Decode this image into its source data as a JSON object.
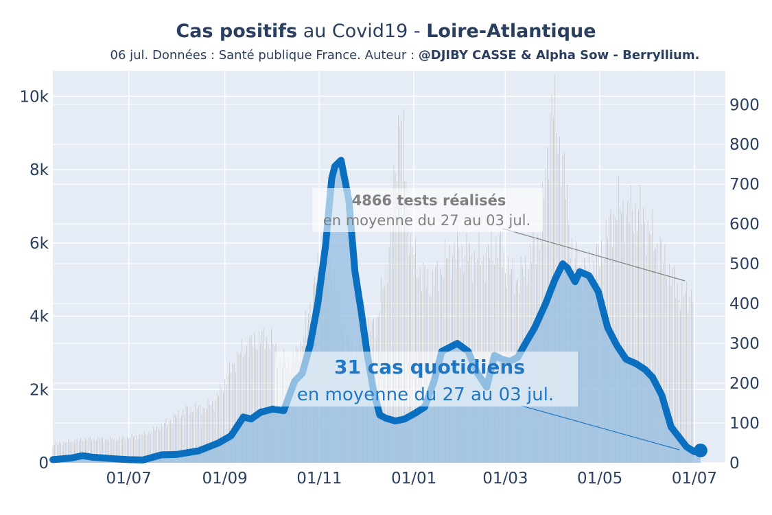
{
  "header": {
    "title_bold1": "Cas positifs",
    "title_mid": " au Covid19 - ",
    "title_bold2": "Loire-Atlantique",
    "subtitle_plain": "06 jul. Données : Santé publique France. Auteur : ",
    "subtitle_bold": "@DJIBY CASSE & Alpha Sow - Berryllium."
  },
  "colors": {
    "plot_bg": "#e5ecf6",
    "cases_line": "#0b6fbf",
    "cases_fill": "#96bde0",
    "tests_bars": "#c8c8c8",
    "grid": "#ffffff",
    "text": "#2a3f5f",
    "annotation_grey": "#808080",
    "annotation_blue": "#1f77c4"
  },
  "annotations": {
    "tests_bold": "4866 tests réalisés",
    "tests_sub": "en moyenne du 27 au 03 jul.",
    "cases_bold": "31 cas quotidiens",
    "cases_sub": "en moyenne du 27 au 03 jul."
  },
  "chart_data": {
    "type": "line",
    "x_tick_labels": [
      "01/07",
      "01/09",
      "01/11",
      "01/01",
      "01/03",
      "01/05",
      "01/07"
    ],
    "x_tick_dates": [
      "2020-07-01",
      "2020-09-01",
      "2020-11-01",
      "2021-01-01",
      "2021-03-01",
      "2021-05-01",
      "2021-07-01"
    ],
    "x_range": [
      "2020-05-13",
      "2021-07-21"
    ],
    "y_left_ticks": [
      "0",
      "2k",
      "4k",
      "6k",
      "8k",
      "10k"
    ],
    "y_left_range": [
      0,
      10700
    ],
    "y_right_ticks": [
      "0",
      "100",
      "200",
      "300",
      "400",
      "500",
      "600",
      "700",
      "800",
      "900"
    ],
    "y_right_range": [
      0,
      985
    ],
    "grid": true,
    "series": [
      {
        "axis": "left",
        "style": "bars",
        "points": [
          [
            "2020-05-13",
            500
          ],
          [
            "2020-05-20",
            550
          ],
          [
            "2020-05-27",
            600
          ],
          [
            "2020-06-03",
            650
          ],
          [
            "2020-06-10",
            650
          ],
          [
            "2020-06-17",
            650
          ],
          [
            "2020-06-24",
            650
          ],
          [
            "2020-07-01",
            700
          ],
          [
            "2020-07-08",
            750
          ],
          [
            "2020-07-15",
            850
          ],
          [
            "2020-07-22",
            1000
          ],
          [
            "2020-07-29",
            1200
          ],
          [
            "2020-08-05",
            1400
          ],
          [
            "2020-08-12",
            1500
          ],
          [
            "2020-08-19",
            1500
          ],
          [
            "2020-08-26",
            1700
          ],
          [
            "2020-09-02",
            2300
          ],
          [
            "2020-09-09",
            2900
          ],
          [
            "2020-09-16",
            3200
          ],
          [
            "2020-09-23",
            3400
          ],
          [
            "2020-09-30",
            3400
          ],
          [
            "2020-10-07",
            2800
          ],
          [
            "2020-10-14",
            2700
          ],
          [
            "2020-10-21",
            3300
          ],
          [
            "2020-10-28",
            4700
          ],
          [
            "2020-11-04",
            5800
          ],
          [
            "2020-11-11",
            5000
          ],
          [
            "2020-11-18",
            3300
          ],
          [
            "2020-11-25",
            3000
          ],
          [
            "2020-12-02",
            3500
          ],
          [
            "2020-12-09",
            4000
          ],
          [
            "2020-12-16",
            5800
          ],
          [
            "2020-12-23",
            9700
          ],
          [
            "2020-12-30",
            5900
          ],
          [
            "2021-01-06",
            5100
          ],
          [
            "2021-01-13",
            4900
          ],
          [
            "2021-01-20",
            5400
          ],
          [
            "2021-01-27",
            5800
          ],
          [
            "2021-02-03",
            5700
          ],
          [
            "2021-02-10",
            5600
          ],
          [
            "2021-02-17",
            5600
          ],
          [
            "2021-02-24",
            6000
          ],
          [
            "2021-03-03",
            5200
          ],
          [
            "2021-03-10",
            5000
          ],
          [
            "2021-03-17",
            5600
          ],
          [
            "2021-03-24",
            6300
          ],
          [
            "2021-03-31",
            9900
          ],
          [
            "2021-04-07",
            8200
          ],
          [
            "2021-04-14",
            5500
          ],
          [
            "2021-04-21",
            5200
          ],
          [
            "2021-04-28",
            5400
          ],
          [
            "2021-05-05",
            6100
          ],
          [
            "2021-05-12",
            7000
          ],
          [
            "2021-05-19",
            6800
          ],
          [
            "2021-05-26",
            6900
          ],
          [
            "2021-06-02",
            6300
          ],
          [
            "2021-06-09",
            5800
          ],
          [
            "2021-06-16",
            5100
          ],
          [
            "2021-06-23",
            4500
          ],
          [
            "2021-06-30",
            4700
          ]
        ]
      },
      {
        "axis": "right",
        "style": "line",
        "points": [
          [
            "2020-05-13",
            8
          ],
          [
            "2020-05-25",
            12
          ],
          [
            "2020-06-01",
            18
          ],
          [
            "2020-06-08",
            14
          ],
          [
            "2020-06-22",
            10
          ],
          [
            "2020-07-01",
            8
          ],
          [
            "2020-07-10",
            7
          ],
          [
            "2020-07-22",
            20
          ],
          [
            "2020-08-01",
            21
          ],
          [
            "2020-08-15",
            30
          ],
          [
            "2020-08-28",
            50
          ],
          [
            "2020-09-05",
            68
          ],
          [
            "2020-09-13",
            115
          ],
          [
            "2020-09-18",
            110
          ],
          [
            "2020-09-24",
            127
          ],
          [
            "2020-10-02",
            135
          ],
          [
            "2020-10-09",
            131
          ],
          [
            "2020-10-16",
            205
          ],
          [
            "2020-10-21",
            225
          ],
          [
            "2020-10-26",
            295
          ],
          [
            "2020-10-31",
            400
          ],
          [
            "2020-11-05",
            545
          ],
          [
            "2020-11-09",
            715
          ],
          [
            "2020-11-11",
            745
          ],
          [
            "2020-11-15",
            760
          ],
          [
            "2020-11-20",
            660
          ],
          [
            "2020-11-24",
            480
          ],
          [
            "2020-11-28",
            380
          ],
          [
            "2020-12-02",
            270
          ],
          [
            "2020-12-06",
            180
          ],
          [
            "2020-12-10",
            120
          ],
          [
            "2020-12-14",
            112
          ],
          [
            "2020-12-20",
            105
          ],
          [
            "2020-12-26",
            110
          ],
          [
            "2021-01-02",
            125
          ],
          [
            "2021-01-08",
            140
          ],
          [
            "2021-01-14",
            205
          ],
          [
            "2021-01-19",
            280
          ],
          [
            "2021-01-24",
            290
          ],
          [
            "2021-01-29",
            300
          ],
          [
            "2021-02-05",
            280
          ],
          [
            "2021-02-11",
            225
          ],
          [
            "2021-02-17",
            190
          ],
          [
            "2021-02-22",
            270
          ],
          [
            "2021-02-27",
            260
          ],
          [
            "2021-03-04",
            255
          ],
          [
            "2021-03-09",
            265
          ],
          [
            "2021-03-14",
            300
          ],
          [
            "2021-03-20",
            340
          ],
          [
            "2021-03-27",
            400
          ],
          [
            "2021-04-02",
            460
          ],
          [
            "2021-04-07",
            500
          ],
          [
            "2021-04-10",
            490
          ],
          [
            "2021-04-15",
            455
          ],
          [
            "2021-04-18",
            480
          ],
          [
            "2021-04-24",
            470
          ],
          [
            "2021-04-30",
            430
          ],
          [
            "2021-05-06",
            340
          ],
          [
            "2021-05-12",
            295
          ],
          [
            "2021-05-18",
            260
          ],
          [
            "2021-05-24",
            250
          ],
          [
            "2021-05-30",
            235
          ],
          [
            "2021-06-04",
            215
          ],
          [
            "2021-06-10",
            170
          ],
          [
            "2021-06-16",
            90
          ],
          [
            "2021-06-21",
            65
          ],
          [
            "2021-06-26",
            40
          ],
          [
            "2021-07-01",
            28
          ],
          [
            "2021-07-05",
            31
          ]
        ]
      }
    ]
  }
}
